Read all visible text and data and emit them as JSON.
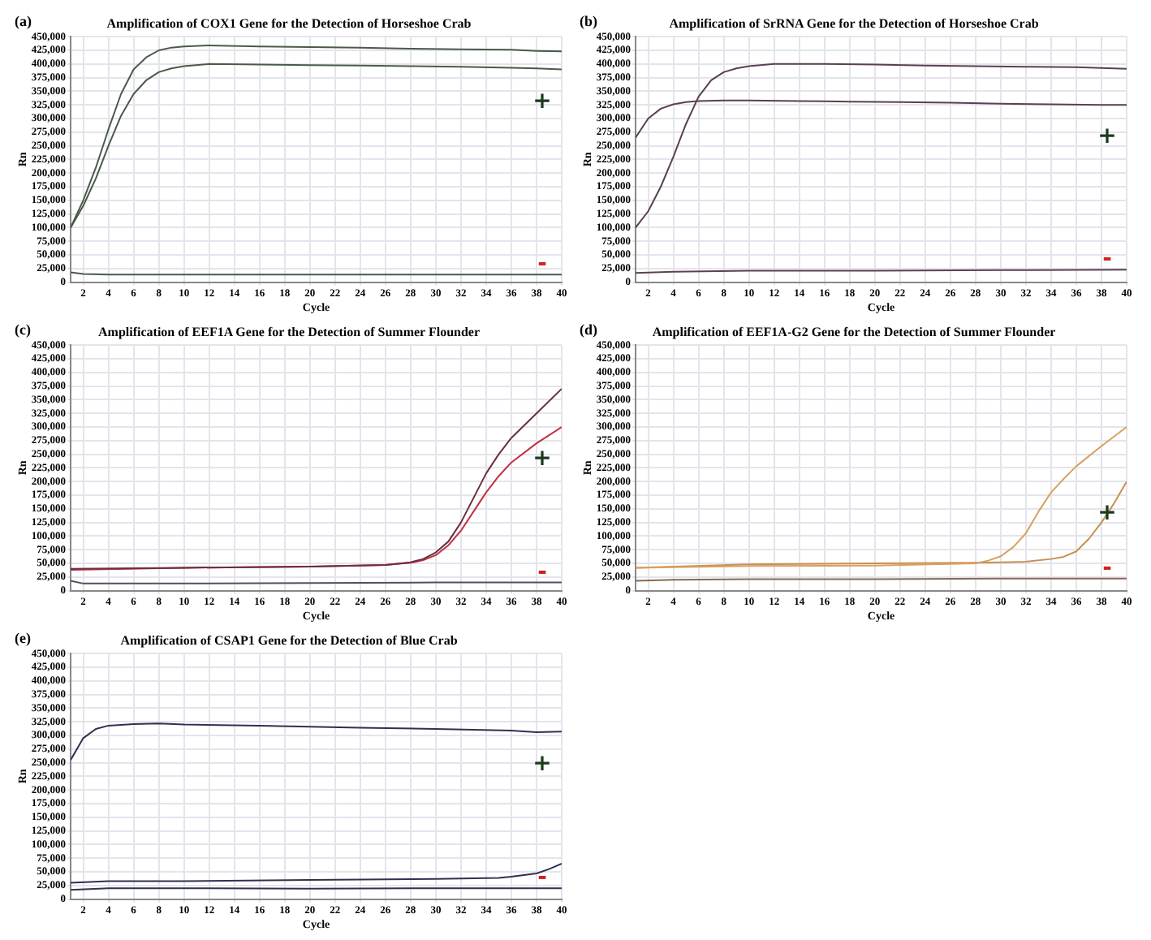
{
  "chart_data": [
    {
      "type": "line",
      "title": "Amplification of COX1 Gene for the Detection of Horseshoe Crab",
      "xlabel": "Cycle",
      "ylabel": "Rn",
      "xlim": [
        1,
        40
      ],
      "xticks": [
        2,
        4,
        6,
        8,
        10,
        12,
        14,
        16,
        18,
        20,
        22,
        24,
        26,
        28,
        30,
        32,
        34,
        36,
        38,
        40
      ],
      "ylim": [
        0,
        450000
      ],
      "yticks": [
        {
          "value": 0,
          "label": "0"
        },
        {
          "value": 25000,
          "label": "25,000"
        },
        {
          "value": 50000,
          "label": "50,000"
        },
        {
          "value": 75000,
          "label": "75,000"
        },
        {
          "value": 100000,
          "label": "100,000"
        },
        {
          "value": 125000,
          "label": "125,000"
        },
        {
          "value": 150000,
          "label": "150,000"
        },
        {
          "value": 175000,
          "label": "175,000"
        },
        {
          "value": 200000,
          "label": "200,000"
        },
        {
          "value": 225000,
          "label": "225,000"
        },
        {
          "value": 250000,
          "label": "250,000"
        },
        {
          "value": 275000,
          "label": "275,000"
        },
        {
          "value": 300000,
          "label": "300,000"
        },
        {
          "value": 325000,
          "label": "325,000"
        },
        {
          "value": 350000,
          "label": "350,000"
        },
        {
          "value": 375000,
          "label": "375,000"
        },
        {
          "value": 400000,
          "label": "400,000"
        },
        {
          "value": 425000,
          "label": "425,000"
        },
        {
          "value": 450000,
          "label": "450,000"
        }
      ],
      "grid": true,
      "legend": false,
      "marker": "none",
      "line_style": "solid",
      "annotations": [
        "(a)",
        "+",
        "-"
      ],
      "series": [
        {
          "color": "#4a5a4a",
          "x": [
            1,
            2,
            3,
            4,
            5,
            6,
            7,
            8,
            9,
            10,
            12,
            16,
            20,
            24,
            28,
            32,
            36,
            38,
            40
          ],
          "values": [
            100000,
            150000,
            210000,
            280000,
            345000,
            390000,
            412000,
            425000,
            430000,
            432000,
            434000,
            432000,
            431000,
            430000,
            428000,
            427000,
            426000,
            424000,
            423000
          ]
        },
        {
          "color": "#4a5a4a",
          "x": [
            1,
            2,
            3,
            4,
            5,
            6,
            7,
            8,
            9,
            10,
            12,
            16,
            20,
            24,
            28,
            32,
            36,
            38,
            40
          ],
          "values": [
            100000,
            140000,
            190000,
            250000,
            305000,
            345000,
            370000,
            385000,
            392000,
            396000,
            400000,
            399000,
            398000,
            397000,
            396000,
            395000,
            393000,
            392000,
            390000
          ]
        },
        {
          "color": "#4a5a4a",
          "x": [
            1,
            2,
            4,
            10,
            20,
            30,
            40
          ],
          "values": [
            18000,
            15000,
            14000,
            14000,
            14000,
            14000,
            14000
          ]
        }
      ]
    },
    {
      "type": "line",
      "title": "Amplification of SrRNA Gene for the Detection of Horseshoe Crab",
      "xlabel": "Cycle",
      "ylabel": "Rn",
      "xlim": [
        1,
        40
      ],
      "xticks": [
        2,
        4,
        6,
        8,
        10,
        12,
        14,
        16,
        18,
        20,
        22,
        24,
        26,
        28,
        30,
        32,
        34,
        36,
        38,
        40
      ],
      "ylim": [
        0,
        450000
      ],
      "yticks": [
        {
          "value": 0,
          "label": "0"
        },
        {
          "value": 25000,
          "label": "25,000"
        },
        {
          "value": 50000,
          "label": "50,000"
        },
        {
          "value": 75000,
          "label": "75,000"
        },
        {
          "value": 100000,
          "label": "100,000"
        },
        {
          "value": 125000,
          "label": "125,000"
        },
        {
          "value": 150000,
          "label": "150,000"
        },
        {
          "value": 175000,
          "label": "175,000"
        },
        {
          "value": 200000,
          "label": "200,000"
        },
        {
          "value": 225000,
          "label": "225,000"
        },
        {
          "value": 250000,
          "label": "250,000"
        },
        {
          "value": 275000,
          "label": "275,000"
        },
        {
          "value": 300000,
          "label": "300,000"
        },
        {
          "value": 325000,
          "label": "325,000"
        },
        {
          "value": 350000,
          "label": "350,000"
        },
        {
          "value": 375000,
          "label": "375,000"
        },
        {
          "value": 400000,
          "label": "400,000"
        },
        {
          "value": 425000,
          "label": "425,000"
        },
        {
          "value": 450000,
          "label": "450,000"
        }
      ],
      "grid": true,
      "legend": false,
      "marker": "none",
      "line_style": "solid",
      "annotations": [
        "(b)",
        "+",
        "-"
      ],
      "series": [
        {
          "color": "#5a4050",
          "x": [
            1,
            2,
            3,
            4,
            5,
            6,
            7,
            8,
            9,
            10,
            12,
            16,
            20,
            24,
            28,
            32,
            36,
            40
          ],
          "values": [
            100000,
            130000,
            175000,
            230000,
            290000,
            340000,
            370000,
            385000,
            392000,
            396000,
            400000,
            400000,
            399000,
            397000,
            396000,
            395000,
            394000,
            391000
          ]
        },
        {
          "color": "#5a4050",
          "x": [
            1,
            2,
            3,
            4,
            5,
            6,
            8,
            10,
            14,
            18,
            22,
            26,
            30,
            34,
            38,
            40
          ],
          "values": [
            265000,
            300000,
            318000,
            326000,
            330000,
            332000,
            333000,
            333000,
            332000,
            331000,
            330000,
            329000,
            327000,
            326000,
            325000,
            325000
          ]
        },
        {
          "color": "#5a4050",
          "x": [
            1,
            4,
            10,
            20,
            30,
            40
          ],
          "values": [
            17000,
            19000,
            21000,
            21000,
            22000,
            23000
          ]
        }
      ]
    },
    {
      "type": "line",
      "title": "Amplification of EEF1A Gene for the Detection of Summer Flounder",
      "xlabel": "Cycle",
      "ylabel": "Rn",
      "xlim": [
        1,
        40
      ],
      "xticks": [
        2,
        4,
        6,
        8,
        10,
        12,
        14,
        16,
        18,
        20,
        22,
        24,
        26,
        28,
        30,
        32,
        34,
        36,
        38,
        40
      ],
      "ylim": [
        0,
        450000
      ],
      "yticks": [
        {
          "value": 0,
          "label": "0"
        },
        {
          "value": 25000,
          "label": "25,000"
        },
        {
          "value": 50000,
          "label": "50,000"
        },
        {
          "value": 75000,
          "label": "75,000"
        },
        {
          "value": 100000,
          "label": "100,000"
        },
        {
          "value": 125000,
          "label": "125,000"
        },
        {
          "value": 150000,
          "label": "150,000"
        },
        {
          "value": 175000,
          "label": "175,000"
        },
        {
          "value": 200000,
          "label": "200,000"
        },
        {
          "value": 225000,
          "label": "225,000"
        },
        {
          "value": 250000,
          "label": "250,000"
        },
        {
          "value": 275000,
          "label": "275,000"
        },
        {
          "value": 300000,
          "label": "300,000"
        },
        {
          "value": 325000,
          "label": "325,000"
        },
        {
          "value": 350000,
          "label": "350,000"
        },
        {
          "value": 375000,
          "label": "375,000"
        },
        {
          "value": 400000,
          "label": "400,000"
        },
        {
          "value": 425000,
          "label": "425,000"
        },
        {
          "value": 450000,
          "label": "450,000"
        }
      ],
      "grid": true,
      "legend": false,
      "marker": "none",
      "line_style": "solid",
      "annotations": [
        "(c)",
        "+",
        "-"
      ],
      "series": [
        {
          "color": "#6a3040",
          "x": [
            1,
            10,
            20,
            26,
            28,
            29,
            30,
            31,
            32,
            33,
            34,
            35,
            36,
            38,
            40
          ],
          "values": [
            40000,
            42000,
            44000,
            47000,
            52000,
            58000,
            70000,
            90000,
            125000,
            170000,
            215000,
            250000,
            280000,
            325000,
            370000
          ]
        },
        {
          "color": "#c03040",
          "x": [
            1,
            10,
            20,
            26,
            28,
            29,
            30,
            31,
            32,
            33,
            34,
            35,
            36,
            38,
            40
          ],
          "values": [
            38000,
            42000,
            44000,
            47000,
            51000,
            56000,
            65000,
            83000,
            110000,
            145000,
            180000,
            210000,
            235000,
            270000,
            300000
          ]
        },
        {
          "color": "#505060",
          "x": [
            1,
            2,
            10,
            20,
            30,
            40
          ],
          "values": [
            18000,
            13000,
            13000,
            14000,
            15000,
            15000
          ]
        }
      ]
    },
    {
      "type": "line",
      "title": "Amplification of EEF1A-G2 Gene for the Detection of Summer Flounder",
      "xlabel": "Cycle",
      "ylabel": "Rn",
      "xlim": [
        1,
        40
      ],
      "xticks": [
        2,
        4,
        6,
        8,
        10,
        12,
        14,
        16,
        18,
        20,
        22,
        24,
        26,
        28,
        30,
        32,
        34,
        36,
        38,
        40
      ],
      "ylim": [
        0,
        450000
      ],
      "yticks": [
        {
          "value": 0,
          "label": "0"
        },
        {
          "value": 25000,
          "label": "25,000"
        },
        {
          "value": 50000,
          "label": "50,000"
        },
        {
          "value": 75000,
          "label": "75,000"
        },
        {
          "value": 100000,
          "label": "100,000"
        },
        {
          "value": 125000,
          "label": "125,000"
        },
        {
          "value": 150000,
          "label": "150,000"
        },
        {
          "value": 175000,
          "label": "175,000"
        },
        {
          "value": 200000,
          "label": "200,000"
        },
        {
          "value": 225000,
          "label": "225,000"
        },
        {
          "value": 250000,
          "label": "250,000"
        },
        {
          "value": 275000,
          "label": "275,000"
        },
        {
          "value": 300000,
          "label": "300,000"
        },
        {
          "value": 325000,
          "label": "325,000"
        },
        {
          "value": 350000,
          "label": "350,000"
        },
        {
          "value": 375000,
          "label": "375,000"
        },
        {
          "value": 400000,
          "label": "400,000"
        },
        {
          "value": 425000,
          "label": "425,000"
        },
        {
          "value": 450000,
          "label": "450,000"
        }
      ],
      "grid": true,
      "legend": false,
      "marker": "none",
      "line_style": "solid",
      "annotations": [
        "(d)",
        "+",
        "-"
      ],
      "series": [
        {
          "color": "#d8a060",
          "x": [
            1,
            10,
            20,
            28,
            29,
            30,
            31,
            32,
            33,
            34,
            35,
            36,
            38,
            40
          ],
          "values": [
            42000,
            45000,
            46000,
            50000,
            55000,
            63000,
            80000,
            105000,
            145000,
            180000,
            205000,
            228000,
            265000,
            300000
          ]
        },
        {
          "color": "#c89050",
          "x": [
            1,
            10,
            20,
            28,
            30,
            32,
            34,
            35,
            36,
            37,
            38,
            39,
            40
          ],
          "values": [
            42000,
            48000,
            50000,
            51000,
            52000,
            53000,
            58000,
            62000,
            72000,
            95000,
            125000,
            160000,
            200000
          ]
        },
        {
          "color": "#8a6a50",
          "x": [
            1,
            4,
            10,
            20,
            30,
            40
          ],
          "values": [
            18000,
            20000,
            21000,
            21000,
            22000,
            22000
          ]
        }
      ]
    },
    {
      "type": "line",
      "title": "Amplification of CSAP1 Gene for the Detection of Blue Crab",
      "xlabel": "Cycle",
      "ylabel": "Rn",
      "xlim": [
        1,
        40
      ],
      "xticks": [
        2,
        4,
        6,
        8,
        10,
        12,
        14,
        16,
        18,
        20,
        22,
        24,
        26,
        28,
        30,
        32,
        34,
        36,
        38,
        40
      ],
      "ylim": [
        0,
        450000
      ],
      "yticks": [
        {
          "value": 0,
          "label": "0"
        },
        {
          "value": 25000,
          "label": "25,000"
        },
        {
          "value": 50000,
          "label": "50,000"
        },
        {
          "value": 75000,
          "label": "75,000"
        },
        {
          "value": 100000,
          "label": "100,000"
        },
        {
          "value": 125000,
          "label": "125,000"
        },
        {
          "value": 150000,
          "label": "150,000"
        },
        {
          "value": 175000,
          "label": "175,000"
        },
        {
          "value": 200000,
          "label": "200,000"
        },
        {
          "value": 225000,
          "label": "225,000"
        },
        {
          "value": 250000,
          "label": "250,000"
        },
        {
          "value": 275000,
          "label": "275,000"
        },
        {
          "value": 300000,
          "label": "300,000"
        },
        {
          "value": 325000,
          "label": "325,000"
        },
        {
          "value": 350000,
          "label": "350,000"
        },
        {
          "value": 375000,
          "label": "375,000"
        },
        {
          "value": 400000,
          "label": "400,000"
        },
        {
          "value": 425000,
          "label": "425,000"
        },
        {
          "value": 450000,
          "label": "450,000"
        }
      ],
      "grid": true,
      "legend": false,
      "marker": "none",
      "line_style": "solid",
      "annotations": [
        "(e)",
        "+",
        "-"
      ],
      "series": [
        {
          "color": "#303050",
          "x": [
            1,
            2,
            3,
            4,
            6,
            8,
            10,
            16,
            20,
            24,
            30,
            36,
            38,
            40
          ],
          "values": [
            255000,
            295000,
            312000,
            318000,
            321000,
            322000,
            320000,
            318000,
            316000,
            314000,
            312000,
            309000,
            306000,
            307000
          ]
        },
        {
          "color": "#303050",
          "x": [
            1,
            4,
            10,
            20,
            30,
            35,
            36,
            37,
            38,
            39,
            40
          ],
          "values": [
            30000,
            33000,
            33000,
            35000,
            37000,
            39000,
            41000,
            44000,
            47000,
            55000,
            65000
          ]
        },
        {
          "color": "#303050",
          "x": [
            1,
            4,
            10,
            20,
            30,
            40
          ],
          "values": [
            17000,
            20000,
            20000,
            19000,
            20000,
            20000
          ]
        }
      ]
    }
  ]
}
